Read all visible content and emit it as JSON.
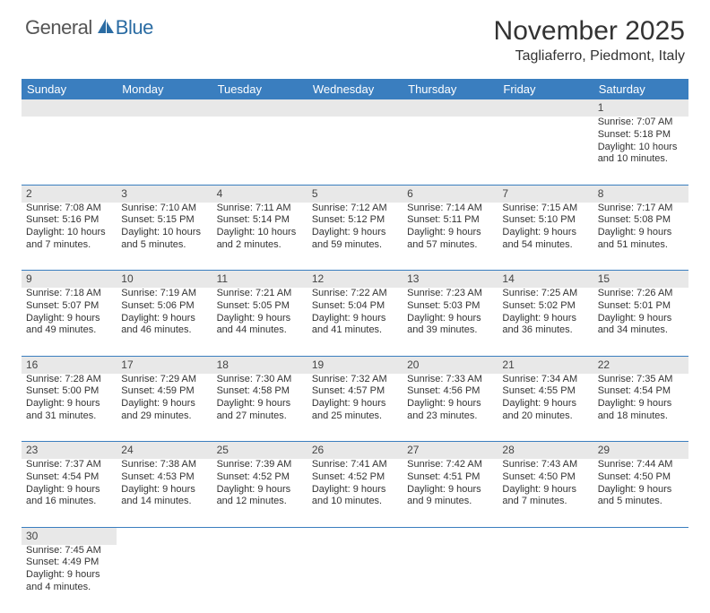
{
  "logo": {
    "general": "General",
    "blue": "Blue"
  },
  "title": "November 2025",
  "location": "Tagliaferro, Piedmont, Italy",
  "colors": {
    "header_bg": "#3a7ebf",
    "header_text": "#ffffff",
    "daynum_bg": "#e8e8e8",
    "border": "#3a7ebf",
    "text": "#333333",
    "background": "#ffffff"
  },
  "days_of_week": [
    "Sunday",
    "Monday",
    "Tuesday",
    "Wednesday",
    "Thursday",
    "Friday",
    "Saturday"
  ],
  "weeks": [
    [
      null,
      null,
      null,
      null,
      null,
      null,
      {
        "n": "1",
        "sr": "Sunrise: 7:07 AM",
        "ss": "Sunset: 5:18 PM",
        "dl": "Daylight: 10 hours and 10 minutes."
      }
    ],
    [
      {
        "n": "2",
        "sr": "Sunrise: 7:08 AM",
        "ss": "Sunset: 5:16 PM",
        "dl": "Daylight: 10 hours and 7 minutes."
      },
      {
        "n": "3",
        "sr": "Sunrise: 7:10 AM",
        "ss": "Sunset: 5:15 PM",
        "dl": "Daylight: 10 hours and 5 minutes."
      },
      {
        "n": "4",
        "sr": "Sunrise: 7:11 AM",
        "ss": "Sunset: 5:14 PM",
        "dl": "Daylight: 10 hours and 2 minutes."
      },
      {
        "n": "5",
        "sr": "Sunrise: 7:12 AM",
        "ss": "Sunset: 5:12 PM",
        "dl": "Daylight: 9 hours and 59 minutes."
      },
      {
        "n": "6",
        "sr": "Sunrise: 7:14 AM",
        "ss": "Sunset: 5:11 PM",
        "dl": "Daylight: 9 hours and 57 minutes."
      },
      {
        "n": "7",
        "sr": "Sunrise: 7:15 AM",
        "ss": "Sunset: 5:10 PM",
        "dl": "Daylight: 9 hours and 54 minutes."
      },
      {
        "n": "8",
        "sr": "Sunrise: 7:17 AM",
        "ss": "Sunset: 5:08 PM",
        "dl": "Daylight: 9 hours and 51 minutes."
      }
    ],
    [
      {
        "n": "9",
        "sr": "Sunrise: 7:18 AM",
        "ss": "Sunset: 5:07 PM",
        "dl": "Daylight: 9 hours and 49 minutes."
      },
      {
        "n": "10",
        "sr": "Sunrise: 7:19 AM",
        "ss": "Sunset: 5:06 PM",
        "dl": "Daylight: 9 hours and 46 minutes."
      },
      {
        "n": "11",
        "sr": "Sunrise: 7:21 AM",
        "ss": "Sunset: 5:05 PM",
        "dl": "Daylight: 9 hours and 44 minutes."
      },
      {
        "n": "12",
        "sr": "Sunrise: 7:22 AM",
        "ss": "Sunset: 5:04 PM",
        "dl": "Daylight: 9 hours and 41 minutes."
      },
      {
        "n": "13",
        "sr": "Sunrise: 7:23 AM",
        "ss": "Sunset: 5:03 PM",
        "dl": "Daylight: 9 hours and 39 minutes."
      },
      {
        "n": "14",
        "sr": "Sunrise: 7:25 AM",
        "ss": "Sunset: 5:02 PM",
        "dl": "Daylight: 9 hours and 36 minutes."
      },
      {
        "n": "15",
        "sr": "Sunrise: 7:26 AM",
        "ss": "Sunset: 5:01 PM",
        "dl": "Daylight: 9 hours and 34 minutes."
      }
    ],
    [
      {
        "n": "16",
        "sr": "Sunrise: 7:28 AM",
        "ss": "Sunset: 5:00 PM",
        "dl": "Daylight: 9 hours and 31 minutes."
      },
      {
        "n": "17",
        "sr": "Sunrise: 7:29 AM",
        "ss": "Sunset: 4:59 PM",
        "dl": "Daylight: 9 hours and 29 minutes."
      },
      {
        "n": "18",
        "sr": "Sunrise: 7:30 AM",
        "ss": "Sunset: 4:58 PM",
        "dl": "Daylight: 9 hours and 27 minutes."
      },
      {
        "n": "19",
        "sr": "Sunrise: 7:32 AM",
        "ss": "Sunset: 4:57 PM",
        "dl": "Daylight: 9 hours and 25 minutes."
      },
      {
        "n": "20",
        "sr": "Sunrise: 7:33 AM",
        "ss": "Sunset: 4:56 PM",
        "dl": "Daylight: 9 hours and 23 minutes."
      },
      {
        "n": "21",
        "sr": "Sunrise: 7:34 AM",
        "ss": "Sunset: 4:55 PM",
        "dl": "Daylight: 9 hours and 20 minutes."
      },
      {
        "n": "22",
        "sr": "Sunrise: 7:35 AM",
        "ss": "Sunset: 4:54 PM",
        "dl": "Daylight: 9 hours and 18 minutes."
      }
    ],
    [
      {
        "n": "23",
        "sr": "Sunrise: 7:37 AM",
        "ss": "Sunset: 4:54 PM",
        "dl": "Daylight: 9 hours and 16 minutes."
      },
      {
        "n": "24",
        "sr": "Sunrise: 7:38 AM",
        "ss": "Sunset: 4:53 PM",
        "dl": "Daylight: 9 hours and 14 minutes."
      },
      {
        "n": "25",
        "sr": "Sunrise: 7:39 AM",
        "ss": "Sunset: 4:52 PM",
        "dl": "Daylight: 9 hours and 12 minutes."
      },
      {
        "n": "26",
        "sr": "Sunrise: 7:41 AM",
        "ss": "Sunset: 4:52 PM",
        "dl": "Daylight: 9 hours and 10 minutes."
      },
      {
        "n": "27",
        "sr": "Sunrise: 7:42 AM",
        "ss": "Sunset: 4:51 PM",
        "dl": "Daylight: 9 hours and 9 minutes."
      },
      {
        "n": "28",
        "sr": "Sunrise: 7:43 AM",
        "ss": "Sunset: 4:50 PM",
        "dl": "Daylight: 9 hours and 7 minutes."
      },
      {
        "n": "29",
        "sr": "Sunrise: 7:44 AM",
        "ss": "Sunset: 4:50 PM",
        "dl": "Daylight: 9 hours and 5 minutes."
      }
    ],
    [
      {
        "n": "30",
        "sr": "Sunrise: 7:45 AM",
        "ss": "Sunset: 4:49 PM",
        "dl": "Daylight: 9 hours and 4 minutes."
      },
      null,
      null,
      null,
      null,
      null,
      null
    ]
  ]
}
